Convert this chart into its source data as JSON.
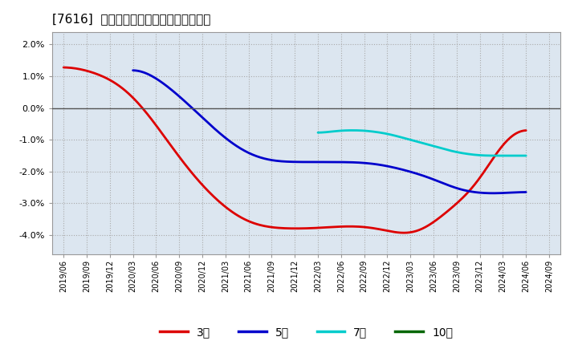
{
  "title": "[7616]  経常利益マージンの平均値の推移",
  "background_color": "#ffffff",
  "plot_background_color": "#dce6f0",
  "grid_color": "#aaaaaa",
  "ylim": [
    -0.046,
    0.024
  ],
  "yticks": [
    -0.04,
    -0.03,
    -0.02,
    -0.01,
    0.0,
    0.01,
    0.02
  ],
  "x_labels": [
    "2019/06",
    "2019/09",
    "2019/12",
    "2020/03",
    "2020/06",
    "2020/09",
    "2020/12",
    "2021/03",
    "2021/06",
    "2021/09",
    "2021/12",
    "2022/03",
    "2022/06",
    "2022/09",
    "2022/12",
    "2023/03",
    "2023/06",
    "2023/09",
    "2023/12",
    "2024/03",
    "2024/06",
    "2024/09"
  ],
  "series_3y": {
    "label": "3年",
    "color": "#dd0000",
    "x": [
      0,
      1,
      2,
      3,
      4,
      5,
      6,
      7,
      8,
      9,
      10,
      11,
      12,
      13,
      14,
      15,
      16,
      17,
      18,
      19,
      20
    ],
    "y": [
      0.014,
      0.012,
      0.01,
      0.005,
      -0.005,
      -0.016,
      -0.025,
      -0.032,
      -0.037,
      -0.038,
      -0.038,
      -0.038,
      -0.037,
      -0.037,
      -0.038,
      -0.042,
      -0.037,
      -0.029,
      -0.027,
      -0.006,
      -0.005
    ]
  },
  "series_5y": {
    "label": "5年",
    "color": "#0000cc",
    "x": [
      3,
      4,
      5,
      6,
      7,
      8,
      9,
      10,
      11,
      12,
      13,
      14,
      15,
      16,
      17,
      18,
      19,
      20
    ],
    "y": [
      0.014,
      0.01,
      0.004,
      -0.003,
      -0.01,
      -0.015,
      -0.017,
      -0.017,
      -0.017,
      -0.017,
      -0.017,
      -0.018,
      -0.02,
      -0.022,
      -0.026,
      -0.027,
      -0.027,
      -0.026
    ]
  },
  "series_7y": {
    "label": "7年",
    "color": "#00cccc",
    "x": [
      11,
      12,
      13,
      14,
      15,
      16,
      17,
      18,
      19,
      20
    ],
    "y": [
      -0.008,
      -0.007,
      -0.007,
      -0.008,
      -0.01,
      -0.012,
      -0.014,
      -0.015,
      -0.015,
      -0.015
    ]
  },
  "series_10y": {
    "label": "10年",
    "color": "#006600",
    "x": [],
    "y": []
  },
  "legend_entries": [
    {
      "label": "3年",
      "color": "#dd0000"
    },
    {
      "label": "5年",
      "color": "#0000cc"
    },
    {
      "label": "7年",
      "color": "#00cccc"
    },
    {
      "label": "10年",
      "color": "#006600"
    }
  ]
}
